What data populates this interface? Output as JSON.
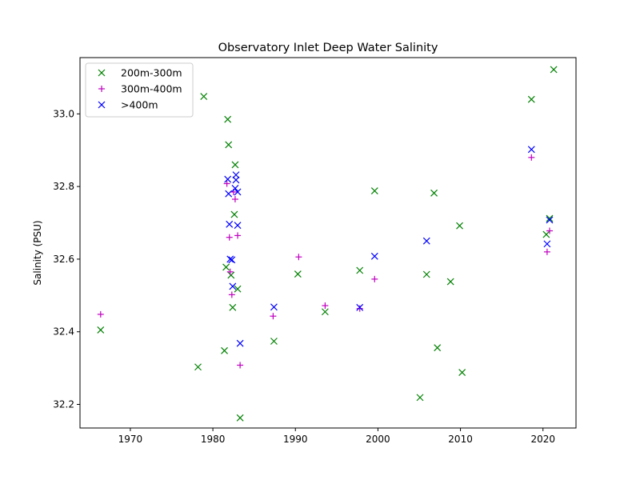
{
  "chart_data": {
    "type": "scatter",
    "title": "Observatory Inlet Deep Water Salinity",
    "xlabel": "",
    "ylabel": "Salinity (PSU)",
    "xlim": [
      1963.9,
      2024.0
    ],
    "ylim": [
      32.135,
      33.155
    ],
    "xticks": [
      1970,
      1980,
      1990,
      2000,
      2010,
      2020
    ],
    "yticks": [
      32.2,
      32.4,
      32.6,
      32.8,
      33.0
    ],
    "grid": false,
    "legend_position": "upper left",
    "series": [
      {
        "name": "200m-300m",
        "marker": "x",
        "color": "#008000",
        "points": [
          [
            1966.4,
            32.405
          ],
          [
            1978.2,
            32.303
          ],
          [
            1978.9,
            33.048
          ],
          [
            1981.4,
            32.348
          ],
          [
            1981.6,
            32.578
          ],
          [
            1981.8,
            32.985
          ],
          [
            1981.9,
            32.915
          ],
          [
            1982.2,
            32.556
          ],
          [
            1982.4,
            32.467
          ],
          [
            1982.6,
            32.723
          ],
          [
            1982.7,
            32.86
          ],
          [
            1983.0,
            32.518
          ],
          [
            1983.3,
            32.163
          ],
          [
            1987.4,
            32.374
          ],
          [
            1990.3,
            32.559
          ],
          [
            1993.6,
            32.455
          ],
          [
            1997.8,
            32.569
          ],
          [
            1999.6,
            32.788
          ],
          [
            2005.1,
            32.219
          ],
          [
            2005.9,
            32.558
          ],
          [
            2006.8,
            32.782
          ],
          [
            2007.2,
            32.356
          ],
          [
            2008.8,
            32.538
          ],
          [
            2009.9,
            32.692
          ],
          [
            2010.2,
            32.288
          ],
          [
            2018.6,
            33.04
          ],
          [
            2020.4,
            32.668
          ],
          [
            2020.8,
            32.712
          ],
          [
            2021.3,
            33.122
          ]
        ]
      },
      {
        "name": "300m-400m",
        "marker": "+",
        "color": "#bf00bf",
        "points": [
          [
            1966.4,
            32.448
          ],
          [
            1981.7,
            32.808
          ],
          [
            1982.0,
            32.66
          ],
          [
            1982.1,
            32.565
          ],
          [
            1982.3,
            32.502
          ],
          [
            1982.5,
            32.785
          ],
          [
            1982.7,
            32.765
          ],
          [
            1983.0,
            32.665
          ],
          [
            1983.3,
            32.308
          ],
          [
            1987.3,
            32.443
          ],
          [
            1990.4,
            32.606
          ],
          [
            1993.6,
            32.472
          ],
          [
            1997.8,
            32.464
          ],
          [
            1999.6,
            32.545
          ],
          [
            2018.6,
            32.88
          ],
          [
            2020.5,
            32.62
          ],
          [
            2020.8,
            32.678
          ]
        ]
      },
      {
        "name": ">400m",
        "marker": "x",
        "color": "#0000ff",
        "points": [
          [
            1981.8,
            32.82
          ],
          [
            1981.9,
            32.78
          ],
          [
            1982.0,
            32.696
          ],
          [
            1982.1,
            32.6
          ],
          [
            1982.3,
            32.598
          ],
          [
            1982.4,
            32.525
          ],
          [
            1982.7,
            32.795
          ],
          [
            1982.8,
            32.818
          ],
          [
            1982.8,
            32.832
          ],
          [
            1983.0,
            32.785
          ],
          [
            1983.0,
            32.693
          ],
          [
            1983.3,
            32.368
          ],
          [
            1987.4,
            32.468
          ],
          [
            1997.8,
            32.467
          ],
          [
            1999.6,
            32.608
          ],
          [
            2005.9,
            32.65
          ],
          [
            2018.6,
            32.902
          ],
          [
            2020.5,
            32.642
          ],
          [
            2020.8,
            32.708
          ]
        ]
      }
    ]
  }
}
